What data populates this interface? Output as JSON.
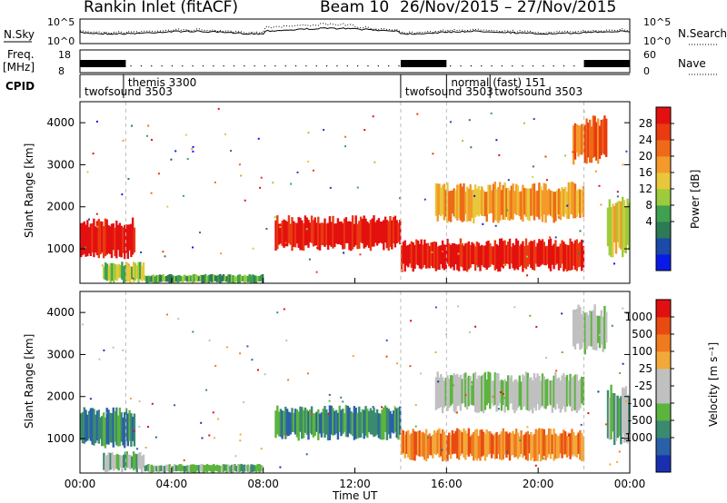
{
  "header": {
    "title": "Rankin Inlet (fitACF)",
    "beam": "Beam 10",
    "dates": "26/Nov/2015 – 27/Nov/2015"
  },
  "labels": {
    "nsky": "N.Sky",
    "nsearch": "N.Search",
    "freq_line1": "Freq.",
    "freq_line2": "[MHz]",
    "nave": "Nave",
    "cpid": "CPID",
    "xlabel": "Time UT"
  },
  "top_axes": {
    "nsky_left_ticks": [
      "10^5",
      "10^0"
    ],
    "nsky_right_ticks": [
      "10^5",
      "10^0"
    ],
    "freq_left_ticks": [
      "18",
      "8"
    ],
    "freq_right_ticks": [
      "60",
      "0"
    ]
  },
  "cpid_segments": [
    {
      "name": "twofsound",
      "id": "3503",
      "label": "twofsound  3503",
      "start": 0,
      "end": 14
    },
    {
      "name": "themis",
      "id": "3300",
      "label": "themis  3300",
      "start": 1.9,
      "end": 4.0
    },
    {
      "name": "twofsound",
      "id": "3503",
      "label": "twofsound  3503",
      "start": 14,
      "end": 16.0
    },
    {
      "name": "normal (fast)",
      "id": "151",
      "label": "normal (fast)  151",
      "start": 16.0,
      "end": 17.9
    },
    {
      "name": "twofsound",
      "id": "3503",
      "label": "twofsound 3503",
      "start": 17.9,
      "end": 24
    }
  ],
  "x_axis": {
    "ticks": [
      "00:00",
      "04:00",
      "08:00",
      "12:00",
      "16:00",
      "20:00",
      "00:00"
    ],
    "tick_hours": [
      0,
      4,
      8,
      12,
      16,
      20,
      24
    ],
    "xlim_hours": [
      0,
      24
    ]
  },
  "panels": {
    "power": {
      "ylabel": "Slant Range [km]",
      "yticks": [
        "1000",
        "2000",
        "3000",
        "4000"
      ],
      "colorbar_label": "Power [dB]",
      "colorbar_ticks": [
        "28",
        "24",
        "20",
        "16",
        "12",
        "8",
        "4"
      ],
      "colors": [
        "#0a1ae6",
        "#1c4aa8",
        "#2e7a55",
        "#3fa050",
        "#9ccc3c",
        "#e8c83a",
        "#f39a2a",
        "#ee6a18",
        "#ea3a10",
        "#e31010"
      ]
    },
    "velocity": {
      "ylabel": "Slant Range [km]",
      "yticks": [
        "1000",
        "2000",
        "3000",
        "4000"
      ],
      "colorbar_label": "Velocity [m s⁻¹]",
      "colorbar_ticks": [
        "1000",
        "500",
        "100",
        "25",
        "-25",
        "-100",
        "-500",
        "-1000"
      ],
      "colors": [
        "#1a2fb0",
        "#2a60a8",
        "#3a8a70",
        "#5cb43e",
        "#c0c0c0",
        "#c0c0c0",
        "#f3a83a",
        "#ef7a20",
        "#e84a12",
        "#e01010"
      ]
    }
  },
  "chart_data": {
    "type": "heatmap",
    "title": "Rankin Inlet (fitACF)",
    "xlabel": "Time UT",
    "ylabel": "Slant Range [km]",
    "xlim": [
      0,
      24
    ],
    "ylim": [
      180,
      4500
    ],
    "power_regions": [
      {
        "t": [
          0.0,
          2.4
        ],
        "r": [
          750,
          1750
        ],
        "level": 9
      },
      {
        "t": [
          1.0,
          2.8
        ],
        "r": [
          180,
          700
        ],
        "level": 4
      },
      {
        "t": [
          2.8,
          8.0
        ],
        "r": [
          180,
          400
        ],
        "level": 3
      },
      {
        "t": [
          8.5,
          14.0
        ],
        "r": [
          950,
          1800
        ],
        "level": 9
      },
      {
        "t": [
          14.0,
          22.0
        ],
        "r": [
          450,
          1250
        ],
        "level": 9
      },
      {
        "t": [
          15.5,
          22.0
        ],
        "r": [
          1600,
          2600
        ],
        "level": 6
      },
      {
        "t": [
          21.5,
          23.0
        ],
        "r": [
          3000,
          4200
        ],
        "level": 7
      },
      {
        "t": [
          23.0,
          24.0
        ],
        "r": [
          800,
          2300
        ],
        "level": 5
      }
    ],
    "velocity_regions": [
      {
        "t": [
          0.0,
          2.4
        ],
        "r": [
          750,
          1750
        ],
        "level": 2
      },
      {
        "t": [
          1.0,
          2.8
        ],
        "r": [
          180,
          700
        ],
        "level": 3
      },
      {
        "t": [
          2.8,
          8.0
        ],
        "r": [
          180,
          400
        ],
        "level": 3
      },
      {
        "t": [
          8.5,
          14.0
        ],
        "r": [
          950,
          1800
        ],
        "level": 2
      },
      {
        "t": [
          14.0,
          22.0
        ],
        "r": [
          450,
          1250
        ],
        "level": 7
      },
      {
        "t": [
          15.5,
          22.0
        ],
        "r": [
          1600,
          2600
        ],
        "level": 4
      },
      {
        "t": [
          21.5,
          23.0
        ],
        "r": [
          3000,
          4200
        ],
        "level": 4
      },
      {
        "t": [
          23.0,
          24.0
        ],
        "r": [
          800,
          2300
        ],
        "level": 3
      }
    ]
  }
}
